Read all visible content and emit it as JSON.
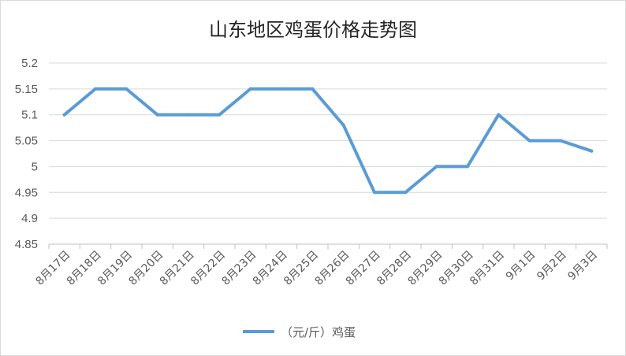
{
  "chart_data": {
    "type": "line",
    "title": "山东地区鸡蛋价格走势图",
    "xlabel": "",
    "ylabel": "",
    "categories": [
      "8月17日",
      "8月18日",
      "8月19日",
      "8月20日",
      "8月21日",
      "8月22日",
      "8月23日",
      "8月24日",
      "8月25日",
      "8月26日",
      "8月27日",
      "8月28日",
      "8月29日",
      "8月30日",
      "8月31日",
      "9月1日",
      "9月2日",
      "9月3日"
    ],
    "series": [
      {
        "name": "（元/斤）鸡蛋",
        "color": "#5b9bd5",
        "values": [
          5.1,
          5.15,
          5.15,
          5.1,
          5.1,
          5.1,
          5.15,
          5.15,
          5.15,
          5.08,
          4.95,
          4.95,
          5.0,
          5.0,
          5.1,
          5.05,
          5.05,
          5.03
        ]
      }
    ],
    "ylim": [
      4.85,
      5.2
    ],
    "yticks": [
      "4.85",
      "4.9",
      "4.95",
      "5",
      "5.05",
      "5.1",
      "5.15",
      "5.2"
    ],
    "grid": true,
    "legend_position": "bottom"
  }
}
